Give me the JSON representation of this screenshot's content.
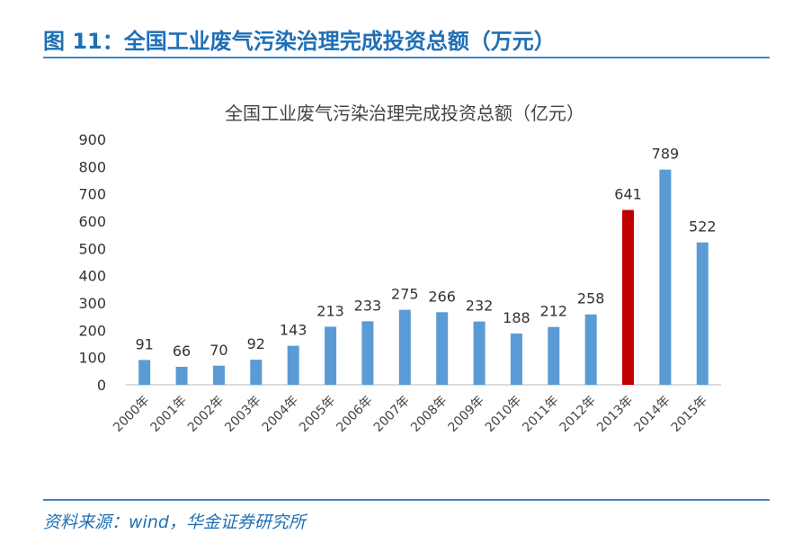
{
  "figure_title": "图 11：全国工业废气污染治理完成投资总额（万元）",
  "source": "资料来源：wind，华金证券研究所",
  "colors": {
    "accent": "#1f6fb5",
    "bar": "#5b9bd5",
    "highlight": "#c00000"
  },
  "chart_data": {
    "type": "bar",
    "title": "全国工业废气污染治理完成投资总额（亿元）",
    "categories": [
      "2000年",
      "2001年",
      "2002年",
      "2003年",
      "2004年",
      "2005年",
      "2006年",
      "2007年",
      "2008年",
      "2009年",
      "2010年",
      "2011年",
      "2012年",
      "2013年",
      "2014年",
      "2015年"
    ],
    "values": [
      91,
      66,
      70,
      92,
      143,
      213,
      233,
      275,
      266,
      232,
      188,
      212,
      258,
      641,
      789,
      522
    ],
    "highlight_index": 13,
    "ylim": [
      0,
      900
    ],
    "yticks": [
      0,
      100,
      200,
      300,
      400,
      500,
      600,
      700,
      800,
      900
    ],
    "grid": false,
    "legend": "none"
  }
}
